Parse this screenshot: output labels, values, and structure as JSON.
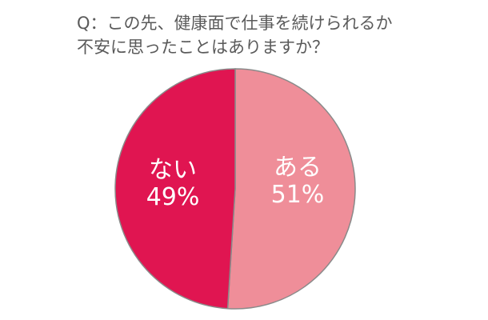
{
  "chart_data": {
    "type": "pie",
    "title": [
      "Q：この先、健康面で仕事を続けられるか",
      "不安に思ったことはありますか？"
    ],
    "categories": [
      "ある",
      "ない"
    ],
    "values": [
      51,
      49
    ],
    "value_labels": [
      "51%",
      "49%"
    ],
    "colors": [
      "#ef8e99",
      "#e01551"
    ]
  }
}
